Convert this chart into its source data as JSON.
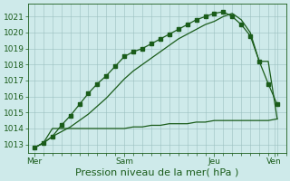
{
  "background_color": "#ceeaea",
  "grid_color": "#9abfbf",
  "line_color": "#1a5c1a",
  "ylim": [
    1012.5,
    1021.8
  ],
  "yticks": [
    1013,
    1014,
    1015,
    1016,
    1017,
    1018,
    1019,
    1020,
    1021
  ],
  "xlabel": "Pression niveau de la mer( hPa )",
  "xlabel_fontsize": 8,
  "tick_fontsize": 6.5,
  "day_labels": [
    "Mer",
    "Sam",
    "Jeu",
    "Ven"
  ],
  "day_positions": [
    0,
    30,
    60,
    80
  ],
  "xlim": [
    -2,
    84
  ],
  "num_minor_xticks": 82,
  "line1_x": [
    0,
    3,
    6,
    9,
    12,
    15,
    18,
    21,
    24,
    27,
    30,
    33,
    36,
    39,
    42,
    45,
    48,
    51,
    54,
    57,
    60,
    63,
    66,
    69,
    72,
    75,
    78,
    81
  ],
  "line1_y": [
    1012.8,
    1013.1,
    1013.5,
    1014.2,
    1014.8,
    1015.5,
    1016.2,
    1016.8,
    1017.3,
    1017.9,
    1018.5,
    1018.8,
    1019.0,
    1019.3,
    1019.6,
    1019.9,
    1020.2,
    1020.5,
    1020.8,
    1021.0,
    1021.2,
    1021.3,
    1021.0,
    1020.5,
    1019.8,
    1018.2,
    1016.8,
    1015.5
  ],
  "line2_x": [
    0,
    3,
    6,
    9,
    12,
    15,
    18,
    21,
    24,
    27,
    30,
    33,
    36,
    39,
    42,
    45,
    48,
    51,
    54,
    57,
    60,
    63,
    66,
    69,
    72,
    75,
    78,
    81
  ],
  "line2_y": [
    1012.8,
    1013.1,
    1014.0,
    1014.0,
    1014.0,
    1014.0,
    1014.0,
    1014.0,
    1014.0,
    1014.0,
    1014.0,
    1014.1,
    1014.1,
    1014.2,
    1014.2,
    1014.3,
    1014.3,
    1014.3,
    1014.4,
    1014.4,
    1014.5,
    1014.5,
    1014.5,
    1014.5,
    1014.5,
    1014.5,
    1014.5,
    1014.6
  ],
  "line3_x": [
    0,
    3,
    6,
    9,
    12,
    15,
    18,
    21,
    24,
    27,
    30,
    33,
    36,
    39,
    42,
    45,
    48,
    51,
    54,
    57,
    60,
    63,
    66,
    69,
    72,
    75,
    78,
    81
  ],
  "line3_y": [
    1012.8,
    1013.1,
    1013.5,
    1013.8,
    1014.1,
    1014.5,
    1014.9,
    1015.4,
    1015.9,
    1016.5,
    1017.1,
    1017.6,
    1018.0,
    1018.4,
    1018.8,
    1019.2,
    1019.6,
    1019.9,
    1020.2,
    1020.5,
    1020.7,
    1021.0,
    1021.2,
    1020.8,
    1020.0,
    1018.2,
    1018.2,
    1014.6
  ]
}
